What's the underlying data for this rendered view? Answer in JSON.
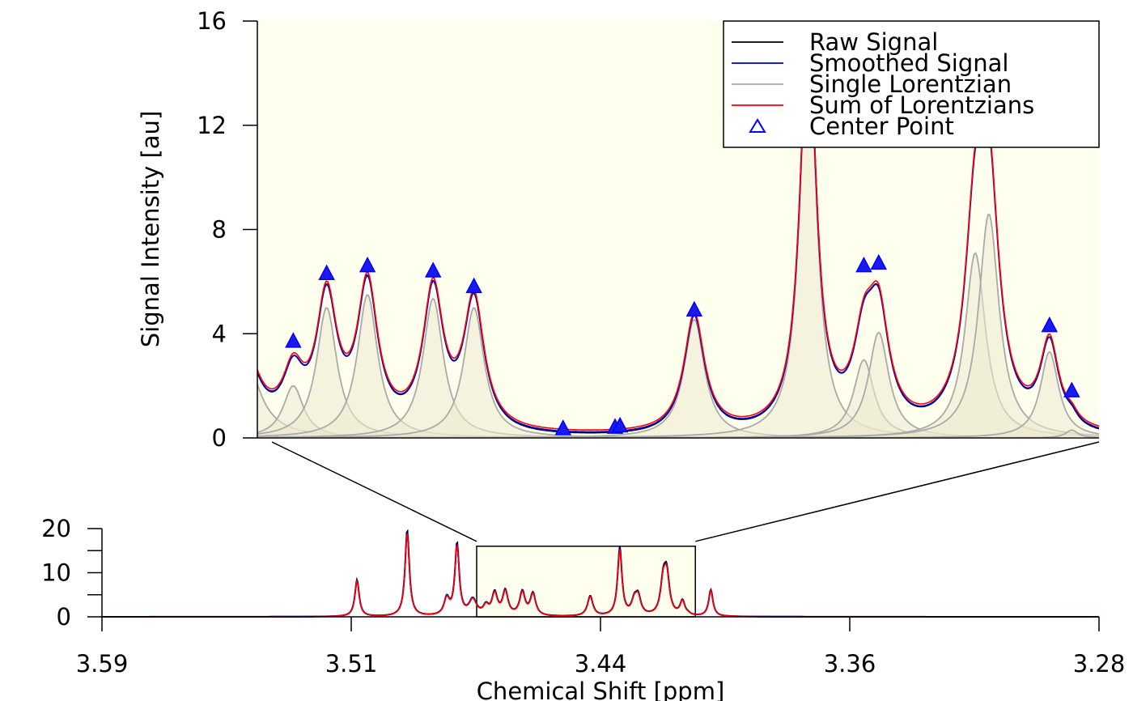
{
  "chart_data": [
    {
      "type": "line",
      "panel": "zoom",
      "xlim": [
        3.4735,
        3.4055
      ],
      "ylim": [
        0,
        16
      ],
      "yticks": [
        0,
        4,
        8,
        12,
        16
      ],
      "ylabel": "Signal Intensity [au]",
      "background": "#ffffee",
      "legend": {
        "position": "top-right",
        "entries": [
          {
            "label": "Raw Signal",
            "color": "#000000",
            "symbol": "line"
          },
          {
            "label": "Smoothed Signal",
            "color": "#0000cc",
            "symbol": "line"
          },
          {
            "label": "Single Lorentzian",
            "color": "#aaaaaa",
            "symbol": "line"
          },
          {
            "label": "Sum of Lorentzians",
            "color": "#ff0000",
            "symbol": "line"
          },
          {
            "label": "Center Point",
            "color": "#0000ff",
            "symbol": "triangle"
          }
        ]
      },
      "peaks": [
        {
          "x": 3.4747,
          "amp": 3.6,
          "w": 0.0014
        },
        {
          "x": 3.4706,
          "amp": 2.0,
          "w": 0.001
        },
        {
          "x": 3.4679,
          "amp": 5.0,
          "w": 0.001
        },
        {
          "x": 3.4646,
          "amp": 5.5,
          "w": 0.001
        },
        {
          "x": 3.4593,
          "amp": 5.35,
          "w": 0.001
        },
        {
          "x": 3.456,
          "amp": 5.0,
          "w": 0.001
        },
        {
          "x": 3.4382,
          "amp": 4.55,
          "w": 0.001
        },
        {
          "x": 3.429,
          "amp": 15.5,
          "w": 0.0008
        },
        {
          "x": 3.4245,
          "amp": 3.0,
          "w": 0.001
        },
        {
          "x": 3.4233,
          "amp": 4.05,
          "w": 0.001
        },
        {
          "x": 3.4155,
          "amp": 7.1,
          "w": 0.001
        },
        {
          "x": 3.4144,
          "amp": 8.6,
          "w": 0.001
        },
        {
          "x": 3.4095,
          "amp": 3.3,
          "w": 0.0009
        },
        {
          "x": 3.4077,
          "amp": 0.3,
          "w": 0.0006
        }
      ],
      "center_points": [
        {
          "x": 3.4706,
          "y": 3.7
        },
        {
          "x": 3.4679,
          "y": 6.3
        },
        {
          "x": 3.4646,
          "y": 6.6
        },
        {
          "x": 3.4593,
          "y": 6.4
        },
        {
          "x": 3.456,
          "y": 5.8
        },
        {
          "x": 3.4488,
          "y": 0.35
        },
        {
          "x": 3.4446,
          "y": 0.4
        },
        {
          "x": 3.4442,
          "y": 0.45
        },
        {
          "x": 3.4382,
          "y": 4.9
        },
        {
          "x": 3.4245,
          "y": 6.6
        },
        {
          "x": 3.4233,
          "y": 6.7
        },
        {
          "x": 3.4095,
          "y": 4.3
        },
        {
          "x": 3.4077,
          "y": 1.8
        }
      ]
    },
    {
      "type": "line",
      "panel": "overview",
      "xlim": [
        3.59,
        3.28
      ],
      "ylim": [
        0,
        20
      ],
      "xticks": [
        "3.59",
        "3.51",
        "3.44",
        "3.36",
        "3.28"
      ],
      "xtick_values": [
        3.59,
        3.5125,
        3.435,
        3.3575,
        3.28
      ],
      "yticks": [
        0,
        10,
        20
      ],
      "xlabel": "Chemical Shift [ppm]",
      "zoom_region": {
        "x": [
          3.4735,
          3.4055
        ],
        "y": [
          0,
          16
        ]
      },
      "peaks": [
        {
          "x": 3.5107,
          "amp": 8.3,
          "w": 0.0008
        },
        {
          "x": 3.4951,
          "amp": 19.5,
          "w": 0.0008
        },
        {
          "x": 3.4828,
          "amp": 3.8,
          "w": 0.001
        },
        {
          "x": 3.4796,
          "amp": 16.2,
          "w": 0.0008
        },
        {
          "x": 3.4747,
          "amp": 3.6,
          "w": 0.0014
        },
        {
          "x": 3.4706,
          "amp": 2.0,
          "w": 0.001
        },
        {
          "x": 3.4679,
          "amp": 5.0,
          "w": 0.001
        },
        {
          "x": 3.4646,
          "amp": 5.5,
          "w": 0.001
        },
        {
          "x": 3.4593,
          "amp": 5.35,
          "w": 0.001
        },
        {
          "x": 3.456,
          "amp": 5.0,
          "w": 0.001
        },
        {
          "x": 3.4382,
          "amp": 4.55,
          "w": 0.001
        },
        {
          "x": 3.429,
          "amp": 15.5,
          "w": 0.0008
        },
        {
          "x": 3.4245,
          "amp": 3.0,
          "w": 0.001
        },
        {
          "x": 3.4233,
          "amp": 4.05,
          "w": 0.001
        },
        {
          "x": 3.4155,
          "amp": 7.1,
          "w": 0.001
        },
        {
          "x": 3.4144,
          "amp": 8.6,
          "w": 0.001
        },
        {
          "x": 3.4095,
          "amp": 3.3,
          "w": 0.0009
        },
        {
          "x": 3.4077,
          "amp": 0.3,
          "w": 0.0006
        },
        {
          "x": 3.4007,
          "amp": 6.0,
          "w": 0.0008
        }
      ]
    }
  ]
}
